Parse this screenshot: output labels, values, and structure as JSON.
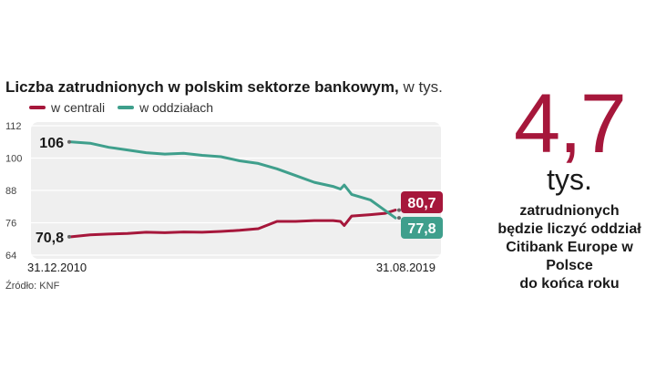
{
  "header": {
    "title_bold": "Liczba zatrudnionych w polskim sektorze bankowym,",
    "title_normal": " w tys."
  },
  "colors": {
    "centrala": "#a6173b",
    "oddzialy": "#3f9f8c",
    "plot_bg": "#efefef"
  },
  "chart_data": {
    "type": "line",
    "title": "Liczba zatrudnionych w polskim sektorze bankowym, w tys.",
    "ylim": [
      64,
      112
    ],
    "yticks": [
      64,
      76,
      88,
      100,
      112
    ],
    "x_start_label": "31.12.2010",
    "x_end_label": "31.08.2019",
    "x": [
      2010.99,
      2011.5,
      2012.0,
      2012.5,
      2013.0,
      2013.5,
      2014.0,
      2014.5,
      2015.0,
      2015.5,
      2016.0,
      2016.5,
      2017.0,
      2017.5,
      2018.0,
      2018.2,
      2018.3,
      2018.5,
      2019.0,
      2019.4,
      2019.67
    ],
    "series": [
      {
        "name": "w centrali",
        "start_label": "70,8",
        "end_label": "80,7",
        "values": [
          70.8,
          71.5,
          71.8,
          72.0,
          72.5,
          72.3,
          72.6,
          72.5,
          72.8,
          73.2,
          73.8,
          76.5,
          76.5,
          76.8,
          76.8,
          76.5,
          75.0,
          78.5,
          79.0,
          79.5,
          80.7
        ]
      },
      {
        "name": "w oddziałach",
        "start_label": "106",
        "end_label": "77,8",
        "values": [
          106.0,
          105.5,
          104.0,
          103.0,
          102.0,
          101.5,
          101.8,
          101.0,
          100.5,
          99.0,
          98.0,
          96.0,
          93.5,
          91.0,
          89.5,
          88.5,
          90.0,
          86.5,
          84.5,
          80.5,
          77.8
        ]
      }
    ],
    "source": "Źródło: KNF"
  },
  "callout": {
    "number": "4,7",
    "unit": "tys.",
    "text_lines": [
      "zatrudnionych",
      "będzie liczyć oddział",
      "Citibank Europe w Polsce",
      "do końca roku"
    ]
  }
}
